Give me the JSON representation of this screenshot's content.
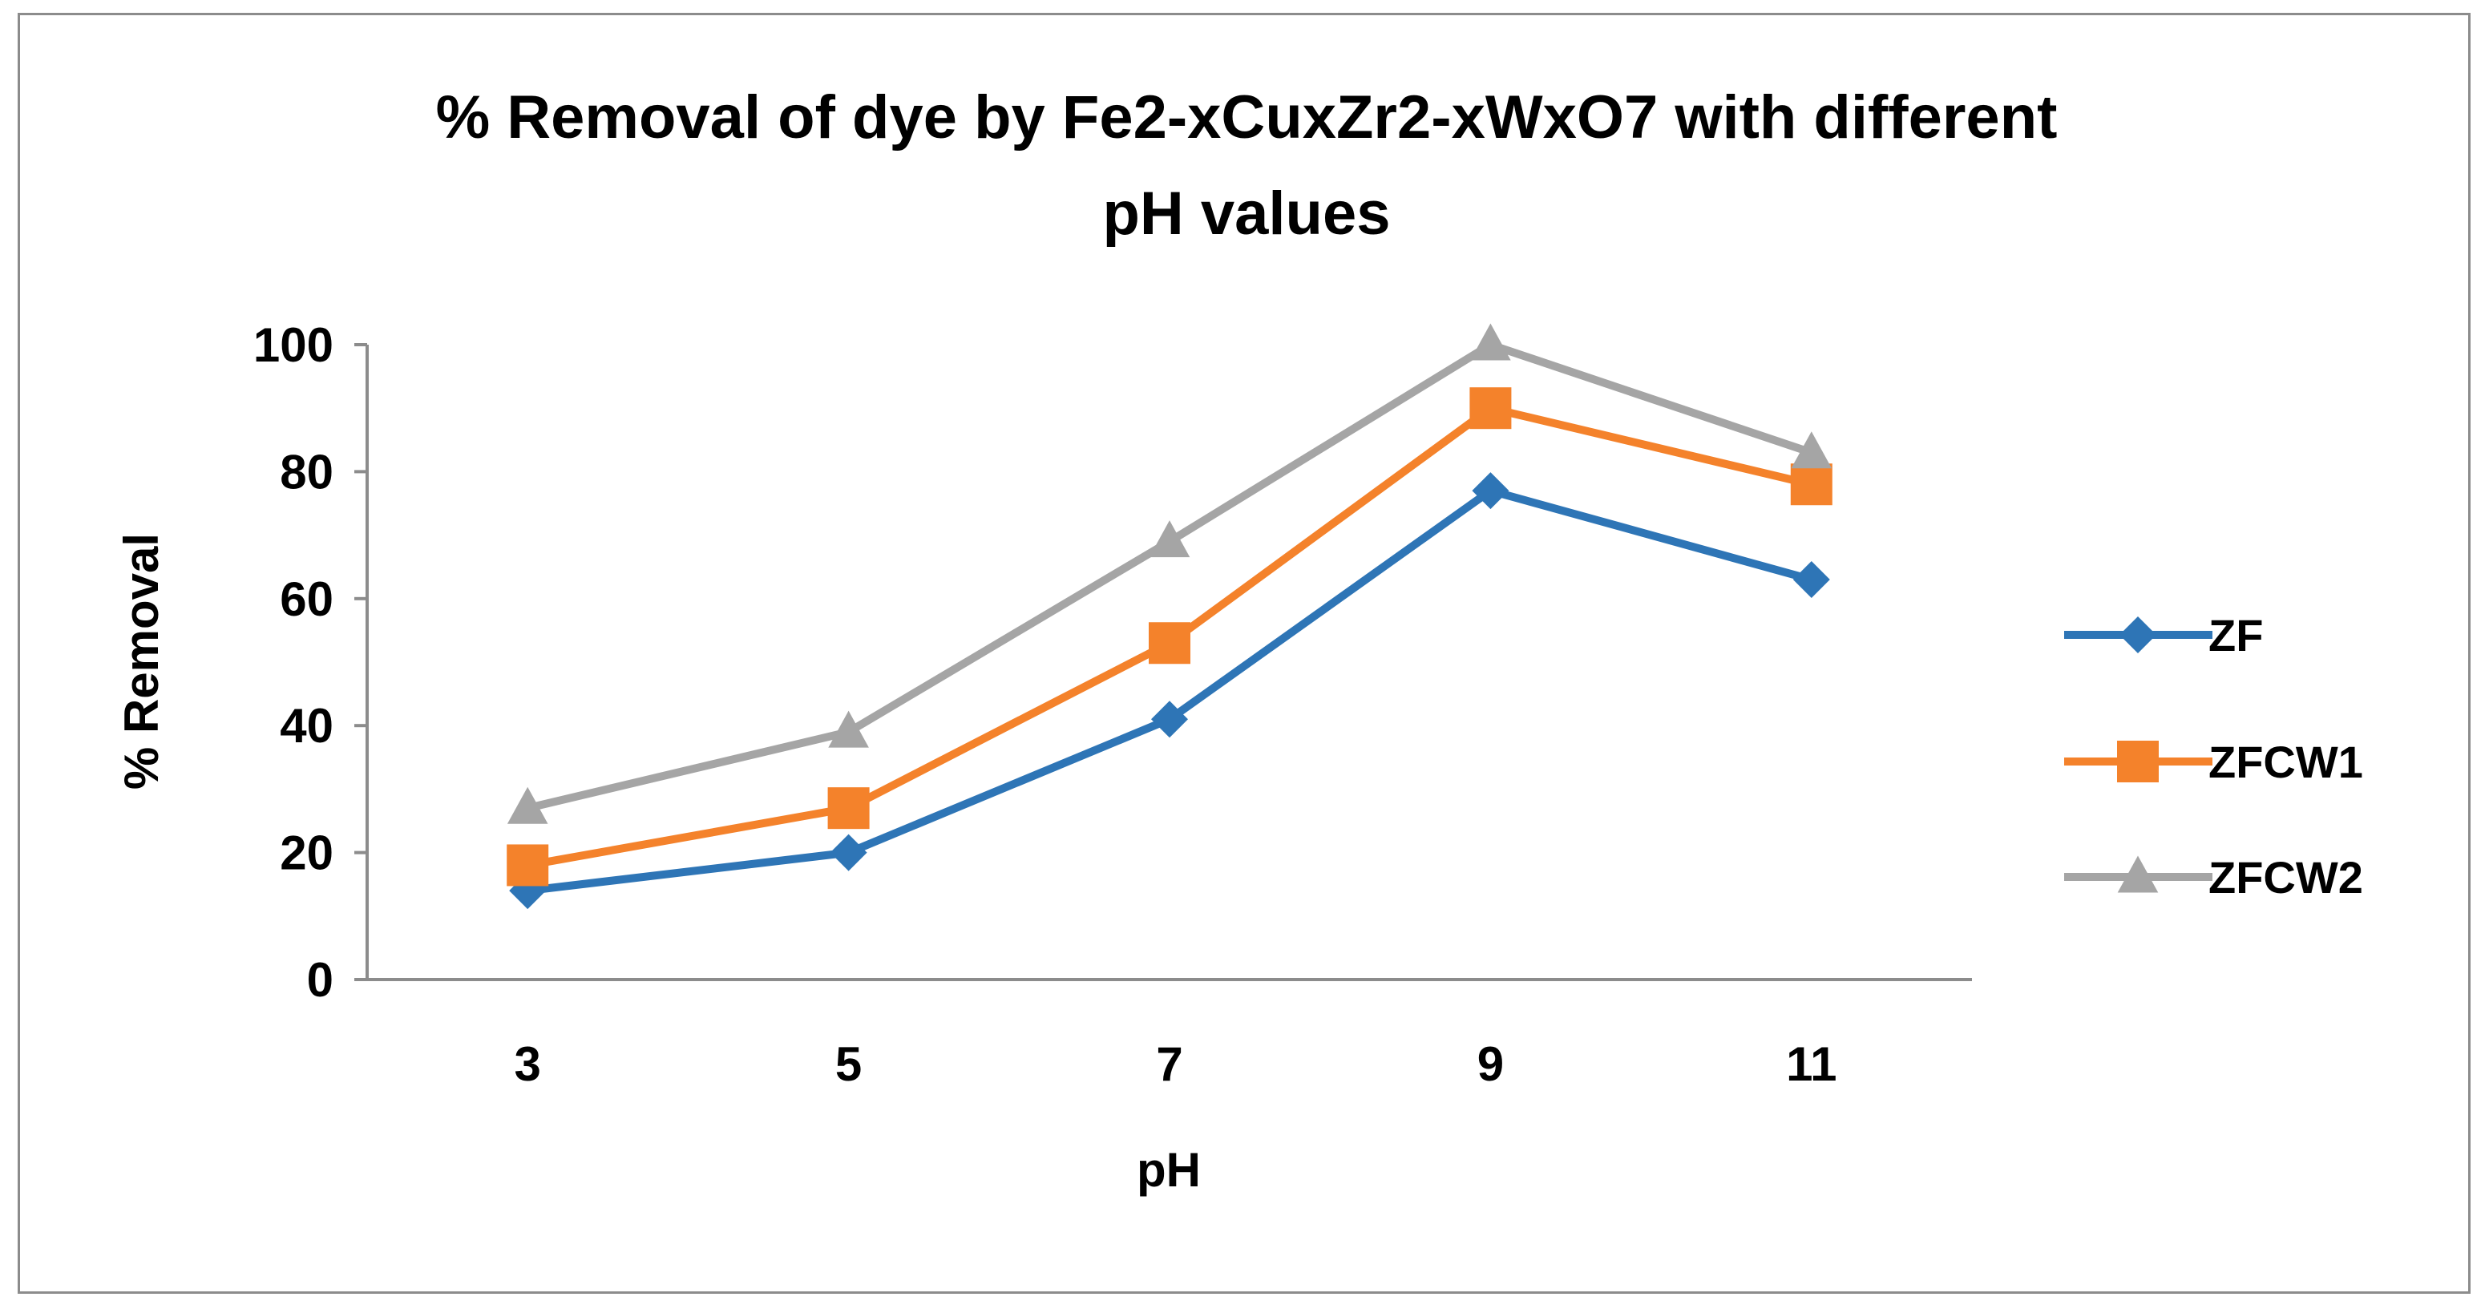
{
  "chart_data": {
    "type": "line",
    "title": "% Removal of dye by Fe2-xCuxZr2-xWxO7  with different pH values",
    "title_lines": [
      "% Removal of dye by Fe2-xCuxZr2-xWxO7  with different",
      "pH values"
    ],
    "xlabel": "pH",
    "ylabel": "% Removal",
    "categories": [
      "3",
      "5",
      "7",
      "9",
      "11"
    ],
    "ylim": [
      0,
      100
    ],
    "yticks": [
      "0",
      "20",
      "40",
      "60",
      "80",
      "100"
    ],
    "grid": false,
    "legend_position": "right",
    "series": [
      {
        "name": "ZF",
        "color": "#2E75B6",
        "marker": "diamond",
        "values": [
          14,
          20,
          41,
          77,
          63
        ]
      },
      {
        "name": "ZFCW1",
        "color": "#F4822B",
        "marker": "square",
        "values": [
          18,
          27,
          53,
          90,
          78
        ]
      },
      {
        "name": "ZFCW2",
        "color": "#A5A5A5",
        "marker": "triangle",
        "values": [
          27,
          39,
          69,
          100,
          83
        ]
      }
    ]
  }
}
